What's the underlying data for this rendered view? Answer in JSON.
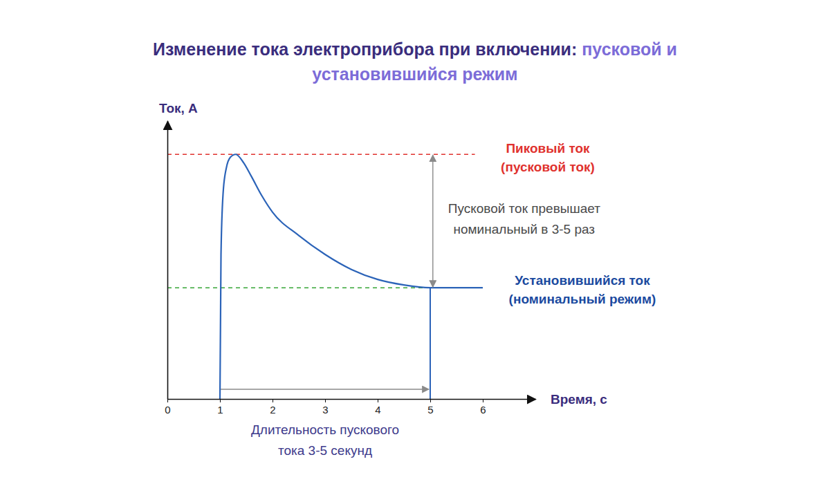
{
  "chart_data": {
    "type": "line",
    "title": [
      "Изменение тока электроприбора при включении:",
      "пусковой и установившийся режим"
    ],
    "x_label": "Время, с",
    "y_label": "Ток, А",
    "x": [
      1,
      1.02,
      1.06,
      1.12,
      1.2,
      1.3,
      1.45,
      1.6,
      1.8,
      2,
      2.5,
      3,
      3.5,
      4,
      4.5,
      5,
      5.5,
      6
    ],
    "series": [
      {
        "color": "#2b63b8",
        "values": [
          0,
          2.6,
          3.7,
          4.15,
          4.35,
          4.4,
          4.25,
          4.0,
          3.65,
          3.36,
          2.94,
          2.6,
          2.33,
          2.15,
          2.05,
          2.0,
          2.0,
          2.0
        ]
      }
    ],
    "xlim": [
      0,
      7
    ],
    "ylim": [
      0,
      5
    ],
    "xticks": [
      0,
      1,
      2,
      3,
      4,
      5,
      6
    ],
    "tick_labels": "x",
    "grid": false,
    "peak": {
      "label": [
        "Пиковый ток",
        "(пусковой ток)"
      ],
      "value": 4.4,
      "x_range": [
        0,
        5.85
      ],
      "color": "#e0322f"
    },
    "steady": {
      "label": [
        "Установившийся ток",
        "(номинальный режим)"
      ],
      "value": 2.0,
      "x_range": [
        0,
        5
      ],
      "color": "#35a535"
    },
    "ratio_note": {
      "text": [
        "Пусковой ток превышает",
        "номинальный в 3-5 раз"
      ],
      "x": 5.05
    },
    "duration_note": {
      "text": [
        "Длительность пускового",
        "тока 3-5 секунд"
      ],
      "range": [
        1,
        5
      ]
    }
  }
}
